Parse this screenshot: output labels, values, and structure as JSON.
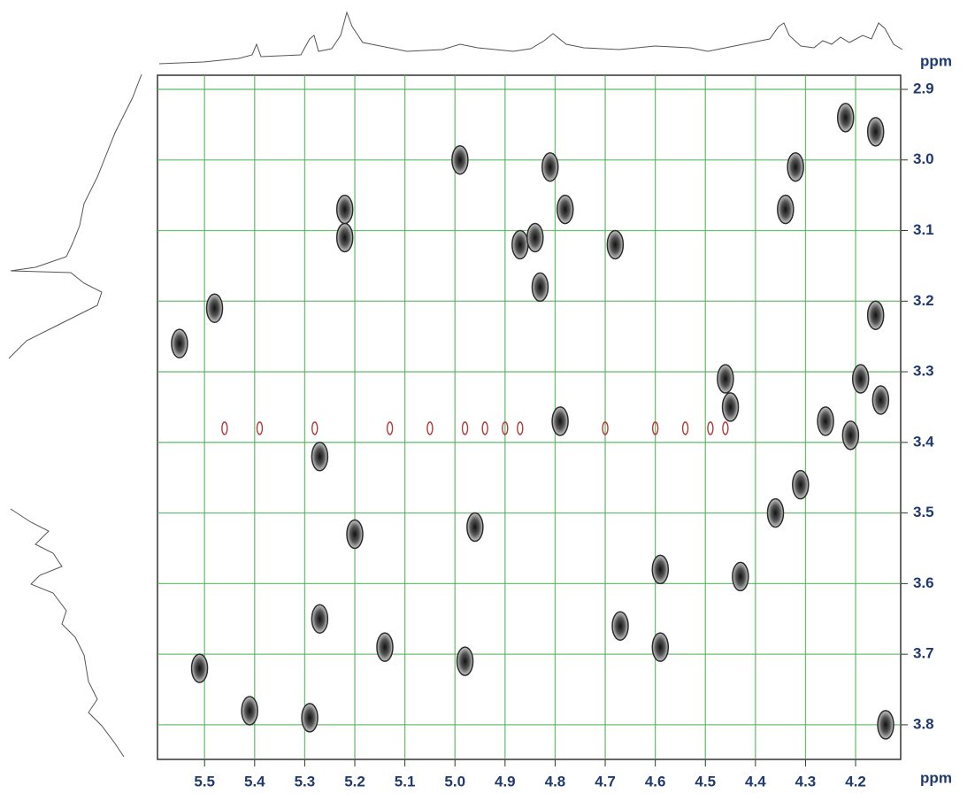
{
  "chart_data": {
    "type": "contour",
    "x_label": "ppm",
    "y_label": "ppm",
    "xlim": [
      5.594,
      4.11
    ],
    "ylim": [
      2.88,
      3.849
    ],
    "xticks": [
      5.5,
      5.4,
      5.3,
      5.2,
      5.1,
      {
        "value": 5,
        "label": "5.0"
      },
      4.9,
      4.8,
      4.7,
      4.6,
      4.5,
      4.4,
      4.3,
      4.2
    ],
    "yticks": [
      2.9,
      {
        "value": 3,
        "label": "3.0"
      },
      3.1,
      3.2,
      3.3,
      3.4,
      3.5,
      3.6,
      3.7,
      3.8
    ],
    "grid": true,
    "grid_color": "#4caf50",
    "series": [
      {
        "color": "#2b2b2b",
        "x": [
          4.22,
          4.16,
          4.32,
          4.34,
          4.81,
          4.87,
          4.84,
          4.99,
          5.55,
          5.48,
          5.22,
          5.22,
          4.83,
          4.78,
          4.68,
          4.46,
          4.45,
          4.16,
          4.19,
          4.15,
          4.26,
          4.21,
          4.79,
          5.27,
          5.2,
          4.96,
          4.31,
          4.36,
          4.59,
          4.43,
          5.27,
          5.14,
          4.98,
          4.67,
          4.59,
          5.41,
          5.29,
          5.51,
          4.14
        ],
        "values": [
          2.94,
          2.96,
          3.01,
          3.07,
          3.01,
          3.12,
          3.11,
          3.0,
          3.26,
          3.21,
          3.07,
          3.11,
          3.18,
          3.07,
          3.12,
          3.31,
          3.35,
          3.22,
          3.31,
          3.34,
          3.37,
          3.39,
          3.37,
          3.42,
          3.53,
          3.52,
          3.46,
          3.5,
          3.58,
          3.59,
          3.65,
          3.69,
          3.71,
          3.66,
          3.69,
          3.78,
          3.79,
          3.72,
          3.8
        ]
      },
      {
        "color": "#b03a3a",
        "x": [
          5.46,
          5.39,
          5.28,
          5.13,
          5.05,
          4.98,
          4.94,
          4.9,
          4.87,
          4.7,
          4.6,
          4.54,
          4.49,
          4.46
        ],
        "values": [
          3.38,
          3.38,
          3.38,
          3.38,
          3.38,
          3.38,
          3.38,
          3.38,
          3.38,
          3.38,
          3.38,
          3.38,
          3.38,
          3.38
        ]
      }
    ]
  }
}
